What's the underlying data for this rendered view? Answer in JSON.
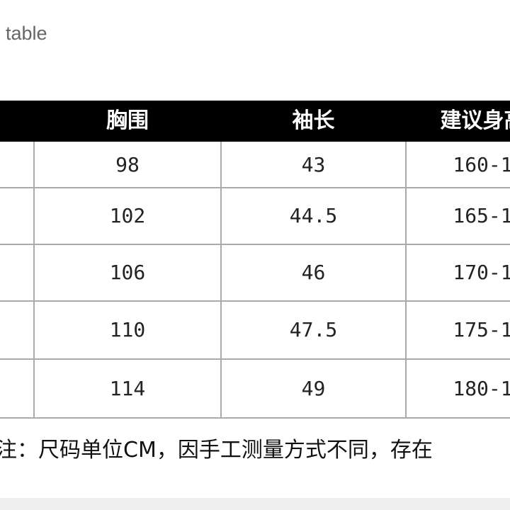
{
  "header": {
    "title": "table"
  },
  "table": {
    "columns": [
      "胸围",
      "袖长",
      "建议身高"
    ],
    "rows": [
      [
        "98",
        "43",
        "160-1"
      ],
      [
        "102",
        "44.5",
        "165-1"
      ],
      [
        "106",
        "46",
        "170-1"
      ],
      [
        "110",
        "47.5",
        "175-1"
      ],
      [
        "114",
        "49",
        "180-1"
      ]
    ]
  },
  "note": "注：尺码单位CM，因手工测量方式不同，存在"
}
